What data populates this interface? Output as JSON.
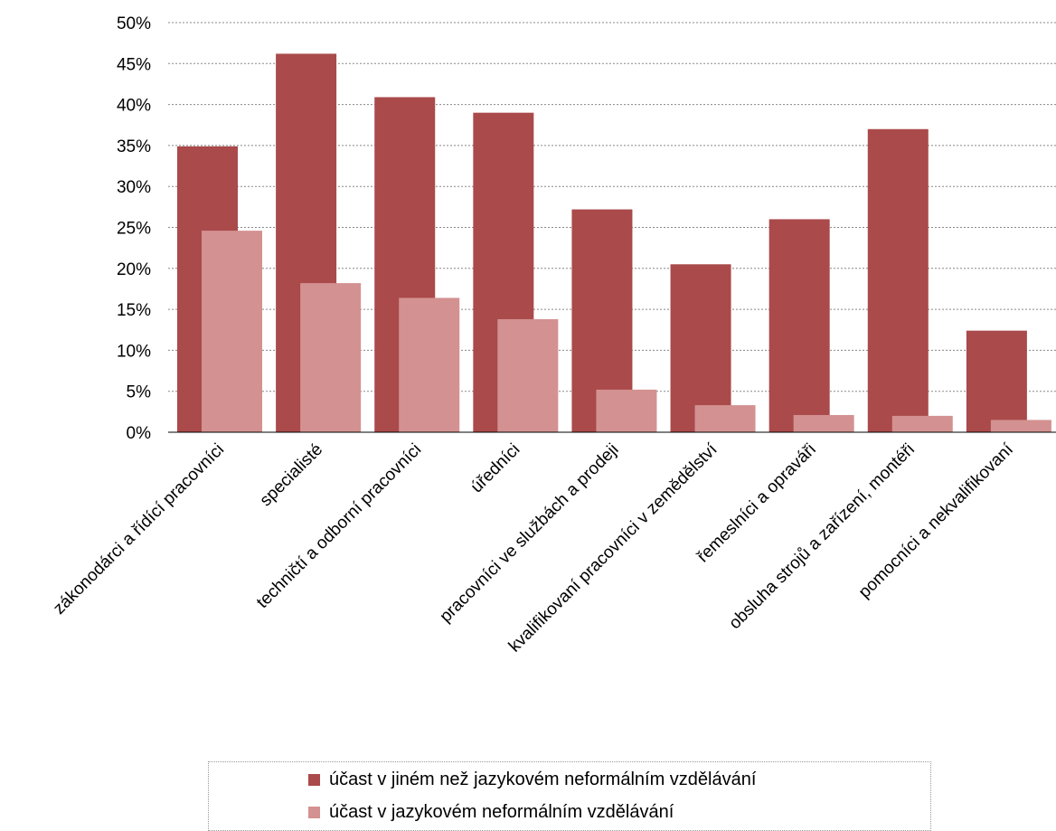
{
  "chart_data": {
    "type": "bar",
    "categories": [
      "zákonodárci a řídící pracovníci",
      "specialisté",
      "techničtí a odborní pracovníci",
      "úředníci",
      "pracovníci ve službách a prodeji",
      "kvalifikovaní pracovníci v zemědělství",
      "řemeslníci a opraváři",
      "obsluha strojů a zařízení, montéři",
      "pomocníci a nekvalifikovaní"
    ],
    "series": [
      {
        "name": "účast v jiném než jazykovém neformálním vzdělávání",
        "color": "#aa4a4a",
        "values": [
          34.9,
          46.2,
          40.9,
          39.0,
          27.2,
          20.5,
          26.0,
          37.0,
          12.4
        ]
      },
      {
        "name": "účast v jazykovém neformálním vzdělávání",
        "color": "#d49191",
        "values": [
          24.6,
          18.2,
          16.4,
          13.8,
          5.2,
          3.3,
          2.1,
          2.0,
          1.5
        ]
      }
    ],
    "ylim": [
      0,
      50
    ],
    "yticks": [
      "0%",
      "5%",
      "10%",
      "15%",
      "20%",
      "25%",
      "30%",
      "35%",
      "40%",
      "45%",
      "50%"
    ],
    "grid": "horizontal dotted",
    "legend": "bottom"
  }
}
